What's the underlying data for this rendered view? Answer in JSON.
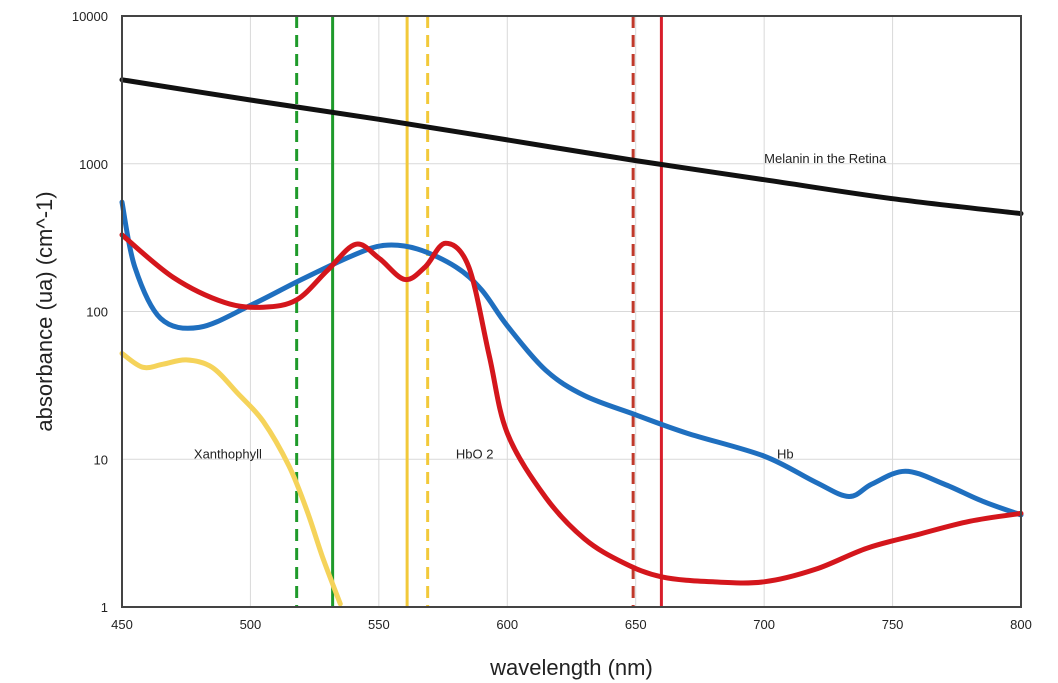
{
  "chart_data": {
    "type": "line",
    "title": "",
    "xlabel": "wavelength (nm)",
    "ylabel": "absorbance (ua) (cm^-1)",
    "xlim": [
      450,
      800
    ],
    "ylim": [
      1,
      10000
    ],
    "yscale": "log",
    "grid": true,
    "x_ticks": [
      450,
      500,
      550,
      600,
      650,
      700,
      750,
      800
    ],
    "y_ticks": [
      1,
      10,
      100,
      1000,
      10000
    ],
    "x_tick_labels": [
      "450",
      "500",
      "550",
      "600",
      "650",
      "700",
      "750",
      "800"
    ],
    "y_tick_labels": [
      "1",
      "10",
      "100",
      "1000",
      "10000"
    ],
    "colors": {
      "melanin": "#111111",
      "hb": "#1f6fbf",
      "hbo2": "#d4161c",
      "xanthophyll": "#f5d35a",
      "green_laser": "#1e9a2a",
      "yellow_laser": "#f2c93a",
      "red_laser": "#d81e2a",
      "dark_red_laser": "#c0392b",
      "grid": "#d9d9d9"
    },
    "series": [
      {
        "name": "Melanin in the Retina",
        "color_key": "melanin",
        "points": [
          [
            450,
            3700
          ],
          [
            500,
            2700
          ],
          [
            550,
            2000
          ],
          [
            600,
            1450
          ],
          [
            650,
            1050
          ],
          [
            700,
            780
          ],
          [
            750,
            580
          ],
          [
            800,
            460
          ]
        ]
      },
      {
        "name": "Hb",
        "color_key": "hb",
        "points": [
          [
            450,
            550
          ],
          [
            455,
            200
          ],
          [
            465,
            90
          ],
          [
            480,
            78
          ],
          [
            500,
            110
          ],
          [
            520,
            165
          ],
          [
            540,
            240
          ],
          [
            552,
            280
          ],
          [
            565,
            265
          ],
          [
            580,
            200
          ],
          [
            590,
            140
          ],
          [
            600,
            80
          ],
          [
            615,
            40
          ],
          [
            630,
            27
          ],
          [
            650,
            20
          ],
          [
            670,
            15
          ],
          [
            700,
            10.5
          ],
          [
            720,
            7
          ],
          [
            733,
            5.6
          ],
          [
            742,
            6.8
          ],
          [
            755,
            8.3
          ],
          [
            770,
            6.8
          ],
          [
            785,
            5.2
          ],
          [
            800,
            4.2
          ]
        ]
      },
      {
        "name": "HbO 2",
        "color_key": "hbo2",
        "points": [
          [
            450,
            330
          ],
          [
            470,
            170
          ],
          [
            490,
            115
          ],
          [
            505,
            107
          ],
          [
            518,
            120
          ],
          [
            530,
            190
          ],
          [
            541,
            285
          ],
          [
            550,
            230
          ],
          [
            560,
            165
          ],
          [
            568,
            200
          ],
          [
            576,
            290
          ],
          [
            585,
            200
          ],
          [
            593,
            50
          ],
          [
            600,
            15
          ],
          [
            615,
            5.5
          ],
          [
            630,
            2.9
          ],
          [
            645,
            2.0
          ],
          [
            660,
            1.6
          ],
          [
            680,
            1.48
          ],
          [
            700,
            1.48
          ],
          [
            720,
            1.8
          ],
          [
            740,
            2.5
          ],
          [
            760,
            3.1
          ],
          [
            780,
            3.8
          ],
          [
            800,
            4.3
          ]
        ]
      },
      {
        "name": "Xanthophyll",
        "color_key": "xanthophyll",
        "points": [
          [
            450,
            52
          ],
          [
            458,
            42
          ],
          [
            466,
            44
          ],
          [
            475,
            47
          ],
          [
            485,
            42
          ],
          [
            495,
            28
          ],
          [
            505,
            18
          ],
          [
            515,
            9
          ],
          [
            522,
            4.5
          ],
          [
            528,
            2.2
          ],
          [
            535,
            1.05
          ]
        ]
      }
    ],
    "vertical_lines": [
      {
        "x": 518,
        "style": "dashed",
        "color_key": "green_laser"
      },
      {
        "x": 532,
        "style": "solid",
        "color_key": "green_laser"
      },
      {
        "x": 561,
        "style": "solid",
        "color_key": "yellow_laser"
      },
      {
        "x": 569,
        "style": "dashed",
        "color_key": "yellow_laser"
      },
      {
        "x": 649,
        "style": "dashed",
        "color_key": "dark_red_laser"
      },
      {
        "x": 660,
        "style": "solid",
        "color_key": "red_laser"
      }
    ],
    "annotations": [
      {
        "text": "Melanin in the Retina",
        "x": 700,
        "y": 1000
      },
      {
        "text": "Xanthophyll",
        "x": 478,
        "y": 10
      },
      {
        "text": "HbO 2",
        "x": 580,
        "y": 10
      },
      {
        "text": "Hb",
        "x": 705,
        "y": 10
      }
    ]
  }
}
